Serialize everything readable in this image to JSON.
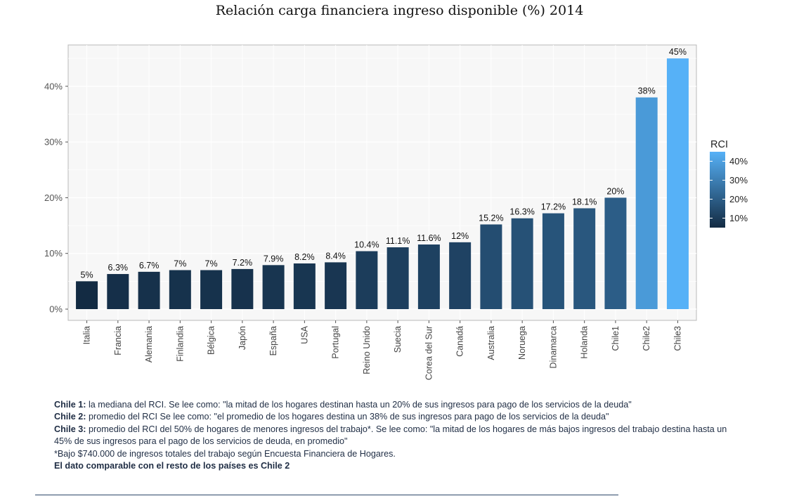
{
  "chart_data": {
    "type": "bar",
    "title": "Relación carga financiera ingreso disponible (%) 2014",
    "xlabel": "",
    "ylabel": "",
    "categories": [
      "Italia",
      "Francia",
      "Alemania",
      "Finlandia",
      "Bélgica",
      "Japón",
      "España",
      "USA",
      "Portugal",
      "Reino Unido",
      "Suecia",
      "Corea del Sur",
      "Canadá",
      "Australia",
      "Noruega",
      "Dinamarca",
      "Holanda",
      "Chile1",
      "Chile2",
      "Chile3"
    ],
    "values": [
      5,
      6.3,
      6.7,
      7,
      7,
      7.2,
      7.9,
      8.2,
      8.4,
      10.4,
      11.1,
      11.6,
      12,
      15.2,
      16.3,
      17.2,
      18.1,
      20,
      38,
      45
    ],
    "value_labels": [
      "5%",
      "6.3%",
      "6.7%",
      "7%",
      "7%",
      "7.2%",
      "7.9%",
      "8.2%",
      "8.4%",
      "10.4%",
      "11.1%",
      "11.6%",
      "12%",
      "15.2%",
      "16.3%",
      "17.2%",
      "18.1%",
      "20%",
      "38%",
      "45%"
    ],
    "y_ticks": [
      0,
      10,
      20,
      30,
      40
    ],
    "y_tick_labels": [
      "0%",
      "10%",
      "20%",
      "30%",
      "40%"
    ],
    "ylim": [
      0,
      47.3
    ],
    "grid": true,
    "legend": {
      "title": "RCI",
      "position": "right",
      "labels": [
        "40%",
        "30%",
        "20%",
        "10%"
      ],
      "values": [
        40,
        30,
        20,
        10
      ],
      "color_low": "#132b43",
      "color_high": "#56b1f7",
      "scale_min": 5,
      "scale_max": 45
    }
  },
  "notes": [
    {
      "bold": "Chile 1:",
      "text": " la mediana del RCI. Se lee como: \"la mitad de los hogares destinan hasta un 20% de sus ingresos para pago de los servicios de la deuda\""
    },
    {
      "bold": "Chile 2:",
      "text": " promedio del RCI Se lee como: \"el promedio de los hogares destina un 38% de sus ingresos para pago de los servicios de la deuda\""
    },
    {
      "bold": "Chile 3:",
      "text": " promedio del RCI del 50% de hogares de menores ingresos del trabajo*. Se lee como: \"la mitad de los hogares de más bajos ingresos del trabajo destina hasta un 45% de sus ingresos para el pago de los servicios de deuda, en promedio\""
    },
    {
      "bold": "",
      "text": "*Bajo $740.000 de ingresos totales del trabajo según Encuesta Financiera de Hogares."
    },
    {
      "bold": "El dato comparable con el resto de los países es Chile 2",
      "text": ""
    }
  ]
}
